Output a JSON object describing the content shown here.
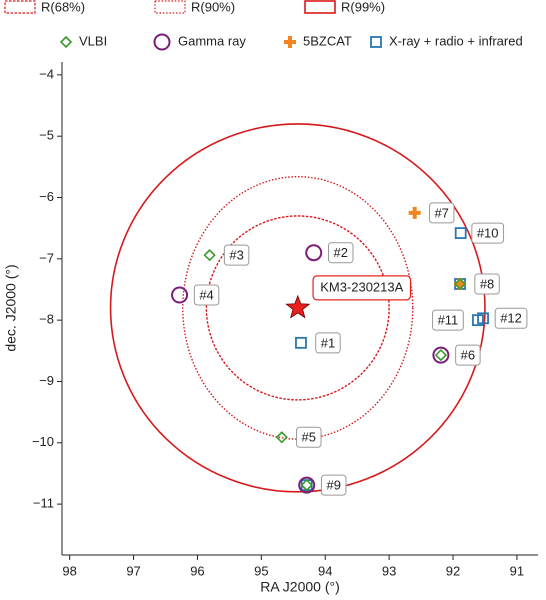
{
  "chart_data": {
    "type": "scatter",
    "x_label": "RA J2000 (°)",
    "y_label": "dec. J2000 (°)",
    "xlim": [
      98.12,
      90.67
    ],
    "ylim": [
      -11.83,
      -3.79
    ],
    "xticks": [
      98,
      97,
      96,
      95,
      94,
      93,
      92,
      91
    ],
    "yticks": [
      {
        "value": -4,
        "label": "−4"
      },
      {
        "value": -5,
        "label": "−5"
      },
      {
        "value": -6,
        "label": "−6"
      },
      {
        "value": -7,
        "label": "−7"
      },
      {
        "value": -8,
        "label": "−8"
      },
      {
        "value": -9,
        "label": "−9"
      },
      {
        "value": -10,
        "label": "−10"
      },
      {
        "value": -11,
        "label": "−11"
      }
    ],
    "event": {
      "label": "KM3-230213A",
      "x": 94.43,
      "y": -7.8,
      "color": "#e8201e"
    },
    "regions": [
      {
        "name": "R(68%)",
        "rx": 1.43,
        "ry": 1.5,
        "style": "dashed",
        "color": "#d7191c"
      },
      {
        "name": "R(90%)",
        "rx": 1.8,
        "ry": 2.14,
        "style": "dotted",
        "color": "#d7191c"
      },
      {
        "name": "R(99%)",
        "rx": 2.93,
        "ry": 3.0,
        "style": "solid",
        "color": "#d7191c"
      }
    ],
    "series": [
      {
        "name": "VLBI",
        "marker": "diamond",
        "color": "#3a9a2a",
        "x": [
          95.81,
          94.68,
          92.19,
          91.89,
          94.29
        ],
        "y": [
          -6.94,
          -9.91,
          -8.57,
          -7.41,
          -10.69
        ]
      },
      {
        "name": "Gamma ray",
        "marker": "circle",
        "color": "#7b1e7a",
        "x": [
          94.18,
          96.28,
          92.19,
          94.29
        ],
        "y": [
          -6.9,
          -7.59,
          -8.57,
          -10.69
        ]
      },
      {
        "name": "5BZCAT",
        "marker": "plus",
        "color": "#f0861e",
        "x": [
          92.6,
          91.89
        ],
        "y": [
          -6.25,
          -7.41
        ]
      },
      {
        "name": "X-ray + radio + infrared",
        "marker": "square",
        "color": "#2a77b0",
        "x": [
          94.38,
          91.89,
          94.29,
          91.88,
          91.61,
          91.53
        ],
        "y": [
          -8.37,
          -7.41,
          -10.69,
          -6.58,
          -8.0,
          -7.97
        ]
      }
    ],
    "annotations": [
      {
        "text": "#1",
        "x": 94.38,
        "y": -8.37
      },
      {
        "text": "#2",
        "x": 94.18,
        "y": -6.9
      },
      {
        "text": "#3",
        "x": 95.81,
        "y": -6.94
      },
      {
        "text": "#4",
        "x": 96.28,
        "y": -7.59
      },
      {
        "text": "#5",
        "x": 94.68,
        "y": -9.91
      },
      {
        "text": "#6",
        "x": 92.19,
        "y": -8.57
      },
      {
        "text": "#7",
        "x": 92.6,
        "y": -6.25
      },
      {
        "text": "#8",
        "x": 91.89,
        "y": -7.41
      },
      {
        "text": "#9",
        "x": 94.29,
        "y": -10.69
      },
      {
        "text": "#10",
        "x": 91.88,
        "y": -6.58
      },
      {
        "text": "#11",
        "x": 91.61,
        "y": -8.0
      },
      {
        "text": "#12",
        "x": 91.53,
        "y": -7.97
      }
    ]
  }
}
